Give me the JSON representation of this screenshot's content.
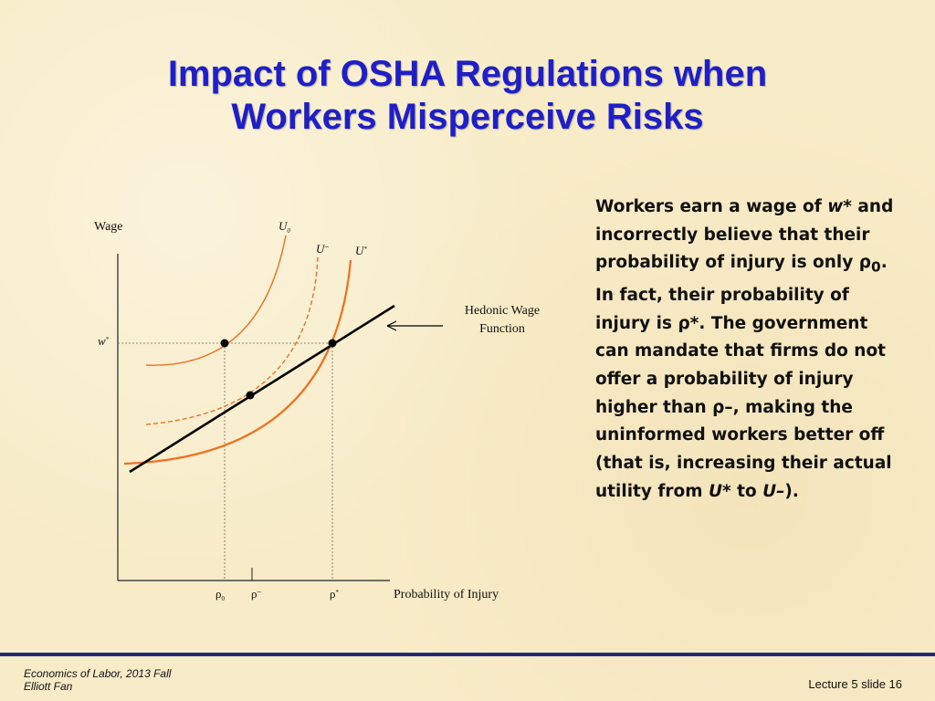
{
  "slide": {
    "title_line1": "Impact of OSHA Regulations when",
    "title_line2": "Workers Misperceive Risks",
    "title_color": "#1f1fc8",
    "background_color": "#f8ecc8"
  },
  "diagram": {
    "y_axis_label": "Wage",
    "x_axis_label": "Probability of Injury",
    "wage_label": "w",
    "wage_sup": "*",
    "curve_labels": {
      "u0": "U",
      "u0_sub": "0",
      "ubar": "U",
      "ubar_sup": "–",
      "ustar": "U",
      "ustar_sup": "*"
    },
    "hedonic_label_line1": "Hedonic Wage",
    "hedonic_label_line2": "Function",
    "x_ticks": {
      "rho0": "ρ",
      "rho0_sub": "0",
      "rhobar": "ρ",
      "rhobar_sup": "–",
      "rhostar": "ρ",
      "rhostar_sup": "*"
    },
    "curve_color": "#f07020",
    "line_color": "#000000"
  },
  "explanation": {
    "p1": "Workers earn a wage of ",
    "w_star": "w*",
    "p2": " and incorrectly believe that their probability of injury is only ρ",
    "rho_sub": "0",
    "p3": ". In fact, their probability of injury is ρ*. The government can mandate that firms do not offer a probability of injury higher than ",
    "rho_bar": "ρ–",
    "p4": ", making the uninformed workers better off (that is, increasing their actual utility from ",
    "u_star": "U*",
    "p5": " to ",
    "u_bar": "U–",
    "p6": ")."
  },
  "footer": {
    "course": "Economics of Labor, 2013 Fall",
    "instructor": "Elliott Fan",
    "slide_number": "Lecture 5 slide 16"
  }
}
